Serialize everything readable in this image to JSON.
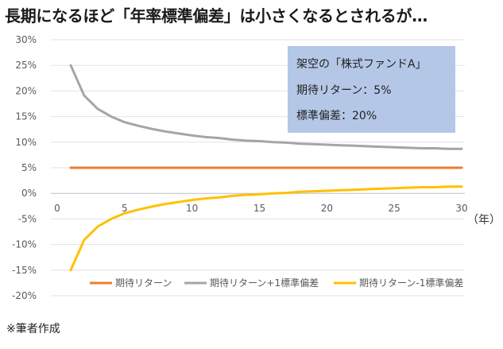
{
  "title": "長期になるほど「年率標準偏差」は小さくなるとされるが…",
  "footnote": "※筆者作成",
  "info_box": {
    "line1": "架空の「株式ファンドA」",
    "line2": "期待リターン：5%",
    "line3": "標準偏差：20%",
    "color": "#b4c7e7"
  },
  "chart_data": {
    "type": "line",
    "title": "長期になるほど「年率標準偏差」は小さくなるとされるが…",
    "xlabel": "（年）",
    "ylabel": "",
    "xlim": [
      0,
      30
    ],
    "ylim": [
      -20,
      30
    ],
    "x_ticks": [
      0,
      5,
      10,
      15,
      20,
      25,
      30
    ],
    "y_ticks": [
      30,
      25,
      20,
      15,
      10,
      5,
      0,
      -5,
      -10,
      -15,
      -20
    ],
    "y_tick_labels": [
      "30%",
      "25%",
      "20%",
      "15%",
      "10%",
      "5%",
      "0%",
      "-5%",
      "-10%",
      "-15%",
      "-20%"
    ],
    "grid": "horizontal",
    "legend": "bottom",
    "x": [
      1,
      2,
      3,
      4,
      5,
      6,
      7,
      8,
      9,
      10,
      11,
      12,
      13,
      14,
      15,
      16,
      17,
      18,
      19,
      20,
      21,
      22,
      23,
      24,
      25,
      26,
      27,
      28,
      29,
      30
    ],
    "series": [
      {
        "name": "期待リターン",
        "color": "#ed7d31",
        "values": [
          5,
          5,
          5,
          5,
          5,
          5,
          5,
          5,
          5,
          5,
          5,
          5,
          5,
          5,
          5,
          5,
          5,
          5,
          5,
          5,
          5,
          5,
          5,
          5,
          5,
          5,
          5,
          5,
          5,
          5
        ]
      },
      {
        "name": "期待リターン+1標準偏差",
        "color": "#a5a5a5",
        "values": [
          25,
          19.1,
          16.5,
          15,
          13.9,
          13.2,
          12.6,
          12.1,
          11.7,
          11.3,
          11,
          10.8,
          10.5,
          10.3,
          10.2,
          10,
          9.9,
          9.7,
          9.6,
          9.5,
          9.4,
          9.3,
          9.2,
          9.1,
          9,
          8.9,
          8.8,
          8.8,
          8.7,
          8.7
        ]
      },
      {
        "name": "期待リターン-1標準偏差",
        "color": "#ffc000",
        "values": [
          -15,
          -9.1,
          -6.5,
          -5,
          -3.9,
          -3.2,
          -2.6,
          -2.1,
          -1.7,
          -1.3,
          -1,
          -0.8,
          -0.5,
          -0.3,
          -0.2,
          0,
          0.1,
          0.3,
          0.4,
          0.5,
          0.6,
          0.7,
          0.8,
          0.9,
          1,
          1.1,
          1.2,
          1.2,
          1.3,
          1.3
        ]
      }
    ]
  }
}
